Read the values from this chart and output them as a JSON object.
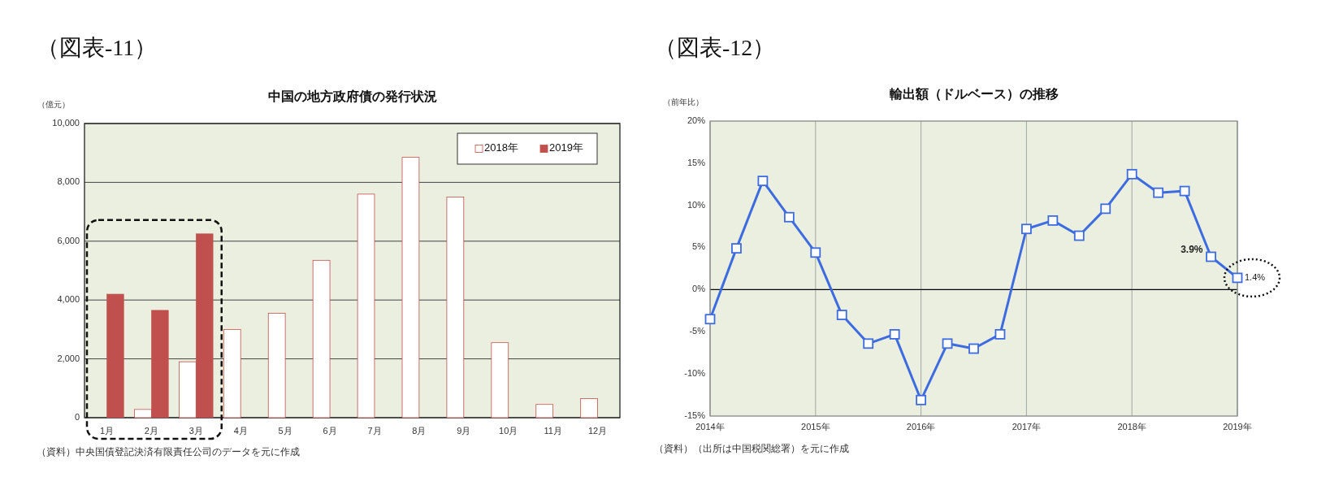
{
  "chart_data": [
    {
      "type": "bar",
      "title": "中国の地方政府債の発行状況",
      "ylabel": "（億元）",
      "annotations": [
        "（図表-11）",
        "（資料）中央国債登記決済有限責任公司のデータを元に作成"
      ],
      "categories": [
        "1月",
        "2月",
        "3月",
        "4月",
        "5月",
        "6月",
        "7月",
        "8月",
        "9月",
        "10月",
        "11月",
        "12月"
      ],
      "series": [
        {
          "name": "2018年",
          "color": "#ffffff",
          "values": [
            null,
            280,
            1900,
            3000,
            3550,
            5350,
            7600,
            8850,
            7500,
            2550,
            450,
            650
          ]
        },
        {
          "name": "2019年",
          "color": "#c0504d",
          "values": [
            4200,
            3650,
            6250,
            null,
            null,
            null,
            null,
            null,
            null,
            null,
            null,
            null
          ]
        }
      ],
      "ylim": [
        0,
        10000
      ],
      "yticks": [
        0,
        {
          "value": 2000,
          "label": "2,000"
        },
        {
          "value": 4000,
          "label": "4,000"
        },
        {
          "value": 6000,
          "label": "6,000"
        },
        {
          "value": 8000,
          "label": "8,000"
        },
        {
          "value": 10000,
          "label": "10,000"
        }
      ],
      "grid": "y",
      "legend": "top right"
    },
    {
      "type": "line",
      "title": "輸出額（ドルベース）の推移",
      "ylabel": "（前年比）",
      "annotations": [
        "（図表-12）",
        "（資料）（出所は中国税関総署）を元に作成",
        {
          "text": "3.9%",
          "x": "2018-10",
          "y": 3.9
        },
        {
          "text": "1.4%",
          "x": "2019-01",
          "y": 1.4
        }
      ],
      "x": [
        "2014-01",
        "2014-04",
        "2014-07",
        "2014-10",
        "2015-01",
        "2015-04",
        "2015-07",
        "2015-10",
        "2016-01",
        "2016-04",
        "2016-07",
        "2016-10",
        "2017-01",
        "2017-04",
        "2017-07",
        "2017-10",
        "2018-01",
        "2018-04",
        "2018-07",
        "2018-10",
        "2019-01"
      ],
      "series": [
        {
          "color": "#3d6be0",
          "values": [
            -3.5,
            4.9,
            12.9,
            8.6,
            4.4,
            -3.0,
            -6.4,
            -5.3,
            -13.1,
            -6.4,
            -7.0,
            -5.3,
            7.2,
            8.2,
            6.4,
            9.6,
            13.7,
            11.5,
            11.7,
            3.9,
            1.4
          ]
        }
      ],
      "xlim": [
        "2014-01",
        "2019-01"
      ],
      "xticks": [
        {
          "value": "2014-01",
          "label": "2014年"
        },
        {
          "value": "2015-01",
          "label": "2015年"
        },
        {
          "value": "2016-01",
          "label": "2016年"
        },
        {
          "value": "2017-01",
          "label": "2017年"
        },
        {
          "value": "2018-01",
          "label": "2018年"
        },
        {
          "value": "2019-01",
          "label": "2019年"
        }
      ],
      "ylim": [
        -15,
        20
      ],
      "yticks": [
        {
          "value": -15,
          "label": "-15%"
        },
        {
          "value": -10,
          "label": "-10%"
        },
        {
          "value": -5,
          "label": "-5%"
        },
        {
          "value": 0,
          "label": "0%"
        },
        {
          "value": 5,
          "label": "5%"
        },
        {
          "value": 10,
          "label": "10%"
        },
        {
          "value": 15,
          "label": "15%"
        },
        {
          "value": 20,
          "label": "20%"
        }
      ],
      "grid": "x",
      "marker": "square",
      "line_style": "solid",
      "ref_lines": [
        {
          "axis": "y",
          "value": 0,
          "color": "#000000"
        }
      ]
    }
  ]
}
